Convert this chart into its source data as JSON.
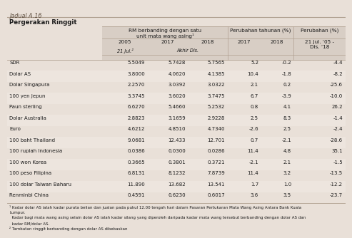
{
  "title": "Jadual A.16",
  "subtitle": "Pergerakan Ringgit",
  "rows": [
    [
      "SDR",
      "5.5049",
      "5.7428",
      "5.7565",
      "5.2",
      "-0.2",
      "-4.4"
    ],
    [
      "Dolar AS",
      "3.8000",
      "4.0620",
      "4.1385",
      "10.4",
      "-1.8",
      "-8.2"
    ],
    [
      "Dolar Singapura",
      "2.2570",
      "3.0392",
      "3.0322",
      "2.1",
      "0.2",
      "-25.6"
    ],
    [
      "100 yen Jepun",
      "3.3745",
      "3.6020",
      "3.7475",
      "6.7",
      "-3.9",
      "-10.0"
    ],
    [
      "Paun sterling",
      "6.6270",
      "5.4660",
      "5.2532",
      "0.8",
      "4.1",
      "26.2"
    ],
    [
      "Dolar Australia",
      "2.8823",
      "3.1659",
      "2.9228",
      "2.5",
      "8.3",
      "-1.4"
    ],
    [
      "Euro",
      "4.6212",
      "4.8510",
      "4.7340",
      "-2.6",
      "2.5",
      "-2.4"
    ],
    [
      "100 baht Thailand",
      "9.0681",
      "12.433",
      "12.701",
      "0.7",
      "-2.1",
      "-28.6"
    ],
    [
      "100 rupiah Indonesia",
      "0.0386",
      "0.0300",
      "0.0286",
      "11.4",
      "4.8",
      "35.1"
    ],
    [
      "100 won Korea",
      "0.3665",
      "0.3801",
      "0.3721",
      "-2.1",
      "2.1",
      "-1.5"
    ],
    [
      "100 peso Filipina",
      "6.8131",
      "8.1232",
      "7.8739",
      "11.4",
      "3.2",
      "-13.5"
    ],
    [
      "100 dolar Taiwan Baharu",
      "11.890",
      "13.682",
      "13.541",
      "1.7",
      "1.0",
      "-12.2"
    ],
    [
      "Renminbi China",
      "0.4591",
      "0.6230",
      "0.6017",
      "3.6",
      "3.5",
      "-23.7"
    ]
  ],
  "footnote1a": "¹ Kadar dolar AS ialah kadar purata belian dan jualan pada pukul 12.00 tengah hari dalam Pasaran Pertukaran Mata Wang Asing Antara Bank Kuala",
  "footnote1b": "Lumpur.",
  "footnote1c": "  Kadar bagi mata wang asing selain dolar AS ialah kadar silang yang diperoleh daripada kadar mata wang tersebut berbanding dengan dolar AS dan",
  "footnote1d": "  kadar RM/dolar AS.",
  "footnote2": "² Tambatan ringgit berbanding dengan dolar AS dibebaskan",
  "bg_color": "#e9e0d8",
  "header_bg": "#d8cec5",
  "row_alt_bg": "#ede5de",
  "title_color": "#5a4a3a",
  "text_color": "#1a1a1a",
  "line_color": "#b0a090"
}
